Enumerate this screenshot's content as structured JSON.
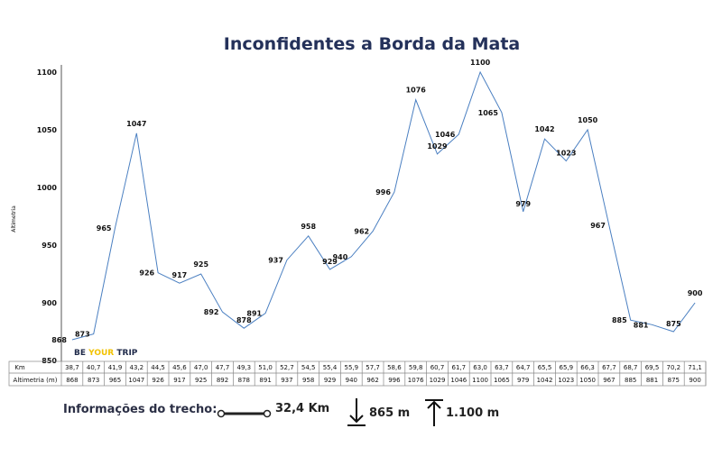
{
  "chart_data": {
    "type": "line",
    "title": "Inconfidentes a Borda da Mata",
    "ylabel": "Altimetria",
    "ylim": [
      850,
      1100
    ],
    "yticks": [
      850,
      900,
      950,
      1000,
      1050,
      1100
    ],
    "grid": false,
    "table_row_labels": [
      "Km",
      "Altimetria (m)"
    ],
    "x": [
      "38,7",
      "40,7",
      "41,9",
      "43,2",
      "44,5",
      "45,6",
      "47,0",
      "47,7",
      "49,3",
      "51,0",
      "52,7",
      "54,5",
      "55,4",
      "55,9",
      "57,7",
      "58,6",
      "59,8",
      "60,7",
      "61,7",
      "63,0",
      "63,7",
      "64,7",
      "65,5",
      "65,9",
      "66,3",
      "67,7",
      "68,7",
      "69,5",
      "70,2",
      "71,1"
    ],
    "series": [
      {
        "values": [
          868,
          873,
          965,
          1047,
          926,
          917,
          925,
          892,
          878,
          891,
          937,
          958,
          929,
          940,
          962,
          996,
          1076,
          1029,
          1046,
          1100,
          1065,
          979,
          1042,
          1023,
          1050,
          967,
          885,
          881,
          875,
          900
        ]
      }
    ],
    "line_color": "#4a7fc1"
  },
  "brand": {
    "be": "BE",
    "your": "YOUR",
    "trip": "TRIP",
    "dark_color": "#1f2a4a",
    "accent_color": "#f2c200"
  },
  "info": {
    "label": "Informações do trecho:",
    "distance": "32,4 Km",
    "descent": "865 m",
    "ascent": "1.100 m",
    "icons": [
      "distance-icon",
      "arrow-down-icon",
      "arrow-up-icon"
    ]
  }
}
